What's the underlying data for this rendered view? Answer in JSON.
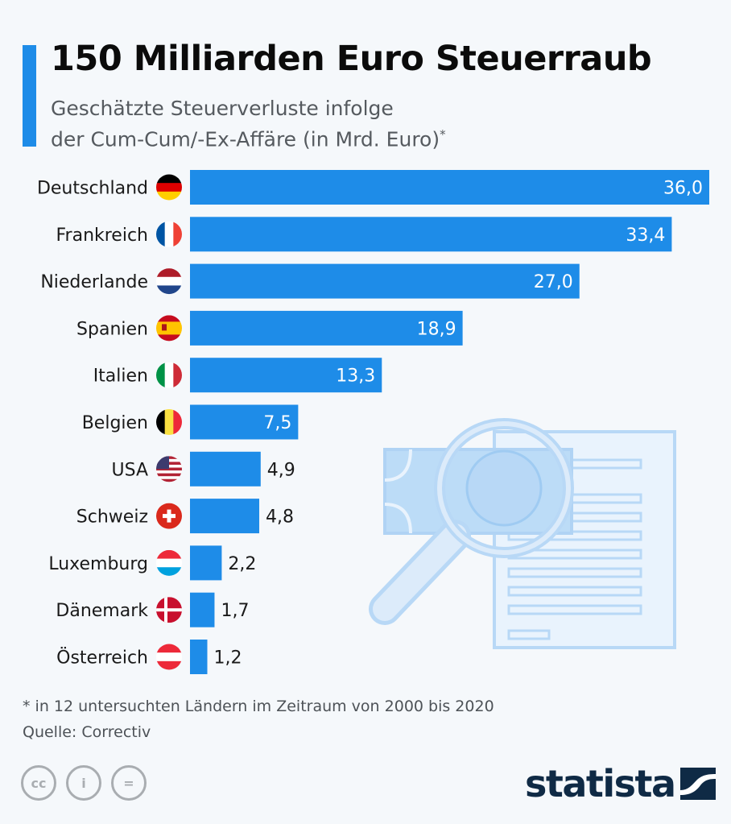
{
  "header": {
    "title": "150 Milliarden Euro Steuerraub",
    "subtitle_line1": "Geschätzte Steuerverluste infolge",
    "subtitle_line2": "der Cum-Cum/-Ex-Affäre (in Mrd. Euro)",
    "subtitle_mark": "*"
  },
  "colors": {
    "bar": "#1e8ce8",
    "accent": "#1e8ce8",
    "logo": "#0f2a45",
    "illustration": "#b8d8f6"
  },
  "chart_data": {
    "type": "bar",
    "orientation": "horizontal",
    "categories": [
      "Deutschland",
      "Frankreich",
      "Niederlande",
      "Spanien",
      "Italien",
      "Belgien",
      "USA",
      "Schweiz",
      "Luxemburg",
      "Dänemark",
      "Österreich"
    ],
    "values": [
      36.0,
      33.4,
      27.0,
      18.9,
      13.3,
      7.5,
      4.9,
      4.8,
      2.2,
      1.7,
      1.2
    ],
    "value_labels": [
      "36,0",
      "33,4",
      "27,0",
      "18,9",
      "13,3",
      "7,5",
      "4,9",
      "4,8",
      "2,2",
      "1,7",
      "1,2"
    ],
    "flags": [
      "germany-flag",
      "france-flag",
      "netherlands-flag",
      "spain-flag",
      "italy-flag",
      "belgium-flag",
      "usa-flag",
      "switzerland-flag",
      "luxembourg-flag",
      "denmark-flag",
      "austria-flag"
    ],
    "xlim": [
      0,
      36
    ],
    "grid": false,
    "legend": "none"
  },
  "footer": {
    "footnote": "* in 12 untersuchten Ländern im Zeitraum von 2000 bis 2020",
    "source": "Quelle: Correctiv",
    "cc_icons": [
      "cc-icon",
      "by-icon",
      "nd-icon"
    ],
    "cc_text": [
      "cc",
      "i",
      "="
    ],
    "logo_text": "statista"
  }
}
